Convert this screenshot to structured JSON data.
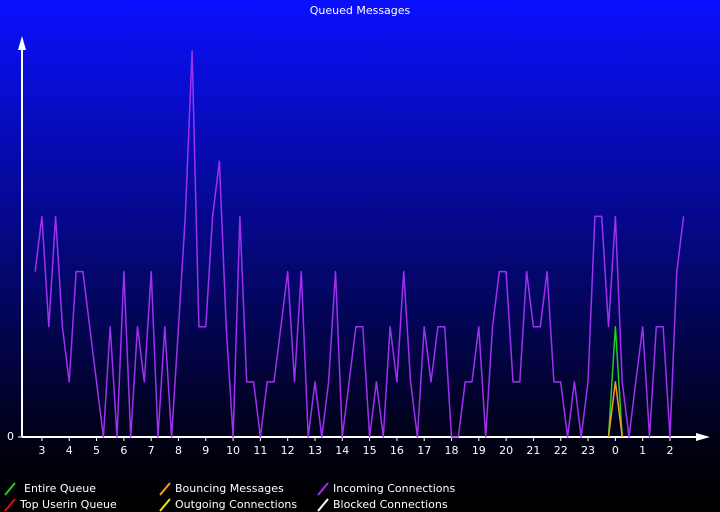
{
  "chart_data": {
    "type": "line",
    "title": "Queued Messages",
    "xlim": [
      2.27,
      27.1
    ],
    "ylim": [
      0,
      7.2
    ],
    "yticks": [
      0
    ],
    "xticks": [
      3,
      4,
      5,
      6,
      7,
      8,
      9,
      10,
      11,
      12,
      13,
      14,
      15,
      16,
      17,
      18,
      19,
      20,
      21,
      22,
      23,
      {
        "value": 24,
        "label": "0"
      },
      {
        "value": 25,
        "label": "1"
      },
      {
        "value": 26,
        "label": "2"
      }
    ],
    "series": [
      {
        "name": "Entire Queue",
        "color": "#22cc22",
        "x": [
          23.75,
          24,
          24.25
        ],
        "values": [
          0,
          2,
          0
        ]
      },
      {
        "name": "Top Userin Queue",
        "color": "#dd1111",
        "x": [],
        "values": []
      },
      {
        "name": "Bouncing Messages",
        "color": "#f0a020",
        "x": [
          23.75,
          24,
          24.25
        ],
        "values": [
          0,
          1,
          0
        ]
      },
      {
        "name": "Outgoing Connections",
        "color": "#f0e020",
        "x": [],
        "values": []
      },
      {
        "name": "Incoming Connections",
        "color": "#a030f0",
        "x": [
          2.75,
          3,
          3.25,
          3.5,
          3.75,
          4,
          4.25,
          4.5,
          4.75,
          5,
          5.25,
          5.5,
          5.75,
          6,
          6.25,
          6.5,
          6.75,
          7,
          7.25,
          7.5,
          7.75,
          8,
          8.25,
          8.5,
          8.75,
          9,
          9.25,
          9.5,
          9.75,
          10,
          10.25,
          10.5,
          10.75,
          11,
          11.25,
          11.5,
          11.75,
          12,
          12.25,
          12.5,
          12.75,
          13,
          13.25,
          13.5,
          13.75,
          14,
          14.25,
          14.5,
          14.75,
          15,
          15.25,
          15.5,
          15.75,
          16,
          16.25,
          16.5,
          16.75,
          17,
          17.25,
          17.5,
          17.75,
          18,
          18.25,
          18.5,
          18.75,
          19,
          19.25,
          19.5,
          19.75,
          20,
          20.25,
          20.5,
          20.75,
          21,
          21.25,
          21.5,
          21.75,
          22,
          22.25,
          22.5,
          22.75,
          23,
          23.25,
          23.5,
          23.75,
          24,
          24.25,
          24.5,
          24.75,
          25,
          25.25,
          25.5,
          25.75,
          26,
          26.25,
          26.5
        ],
        "values": [
          3,
          4,
          2,
          4,
          2,
          1,
          3,
          3,
          2,
          1,
          0,
          2,
          0,
          3,
          0,
          2,
          1,
          3,
          0,
          2,
          0,
          2,
          4,
          7,
          2,
          2,
          4,
          5,
          2,
          0,
          4,
          1,
          1,
          0,
          1,
          1,
          2,
          3,
          1,
          3,
          0,
          1,
          0,
          1,
          3,
          0,
          1,
          2,
          2,
          0,
          1,
          0,
          2,
          1,
          3,
          1,
          0,
          2,
          1,
          2,
          2,
          0,
          0,
          1,
          1,
          2,
          0,
          2,
          3,
          3,
          1,
          1,
          3,
          2,
          2,
          3,
          1,
          1,
          0,
          1,
          0,
          1,
          4,
          4,
          2,
          4,
          1,
          0,
          1,
          2,
          0,
          2,
          2,
          0,
          3,
          4
        ]
      },
      {
        "name": "Blocked Connections",
        "color": "#ffffff",
        "x": [],
        "values": []
      }
    ]
  }
}
